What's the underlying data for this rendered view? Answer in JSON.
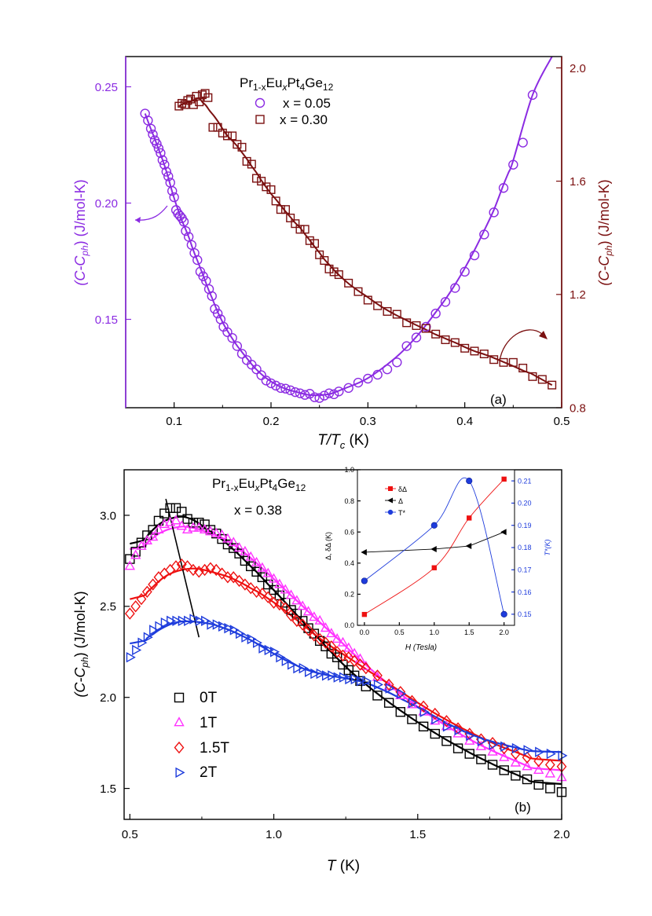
{
  "chart_data": [
    {
      "id": "a",
      "type": "scatter",
      "panel_label": "(a)",
      "xlabel_main": "T/T",
      "xlabel_sub": "c",
      "xlabel_unit": " (K)",
      "xlim": [
        0.05,
        0.5
      ],
      "xticks": [
        0.1,
        0.2,
        0.3,
        0.4,
        0.5
      ],
      "xtick_labels": [
        "0.1",
        "0.2",
        "0.3",
        "0.4",
        "0.5"
      ],
      "ylabel_left": {
        "pre": "(C-C",
        "sub": "ph",
        "post": ") (J/mol-K)",
        "color": "#8b2be2"
      },
      "ylabel_right": {
        "pre": "(C-C",
        "sub": "ph",
        "post": ") (J/mol-K)",
        "color": "#7b1010"
      },
      "ylim_left": [
        0.112,
        0.263
      ],
      "yticks_left": [
        0.15,
        0.2,
        0.25
      ],
      "ytick_labels_left": [
        "0.15",
        "0.20",
        "0.25"
      ],
      "ylim_right": [
        0.8,
        2.04
      ],
      "yticks_right": [
        0.8,
        1.2,
        1.6,
        2.0
      ],
      "ytick_labels_right": [
        "0.8",
        "1.2",
        "1.6",
        "2.0"
      ],
      "legend_title": {
        "p1": "Pr",
        "s1": "1-x",
        "p2": "Eu",
        "s2": "x",
        "p3": "Pt",
        "s3": "4",
        "p4": "Ge",
        "s4": "12"
      },
      "series": [
        {
          "name": "x = 0.05",
          "marker": "circle",
          "color": "#8b2be2",
          "axis": "left",
          "x": [
            0.07,
            0.073,
            0.076,
            0.078,
            0.08,
            0.082,
            0.084,
            0.086,
            0.088,
            0.09,
            0.092,
            0.094,
            0.096,
            0.098,
            0.1,
            0.102,
            0.104,
            0.106,
            0.108,
            0.11,
            0.112,
            0.115,
            0.118,
            0.121,
            0.124,
            0.127,
            0.13,
            0.133,
            0.136,
            0.139,
            0.142,
            0.145,
            0.148,
            0.151,
            0.155,
            0.16,
            0.165,
            0.17,
            0.175,
            0.18,
            0.185,
            0.19,
            0.195,
            0.2,
            0.205,
            0.21,
            0.215,
            0.22,
            0.225,
            0.23,
            0.235,
            0.24,
            0.245,
            0.25,
            0.255,
            0.26,
            0.265,
            0.27,
            0.28,
            0.29,
            0.3,
            0.31,
            0.32,
            0.33,
            0.34,
            0.35,
            0.36,
            0.37,
            0.38,
            0.39,
            0.4,
            0.41,
            0.42,
            0.43,
            0.44,
            0.45,
            0.46,
            0.47
          ],
          "y": [
            0.2385,
            0.2355,
            0.232,
            0.2295,
            0.227,
            0.2255,
            0.2235,
            0.2215,
            0.2185,
            0.2165,
            0.2135,
            0.2115,
            0.2088,
            0.2052,
            0.2025,
            0.197,
            0.1955,
            0.1945,
            0.1935,
            0.192,
            0.188,
            0.1855,
            0.182,
            0.1785,
            0.1755,
            0.1705,
            0.1685,
            0.1665,
            0.163,
            0.16,
            0.1545,
            0.1525,
            0.15,
            0.1468,
            0.1445,
            0.142,
            0.1385,
            0.1352,
            0.1325,
            0.1305,
            0.1285,
            0.126,
            0.1237,
            0.1225,
            0.1215,
            0.1205,
            0.1202,
            0.1195,
            0.1187,
            0.1182,
            0.1175,
            0.118,
            0.1165,
            0.1162,
            0.1172,
            0.1182,
            0.1178,
            0.119,
            0.1205,
            0.1228,
            0.1245,
            0.1262,
            0.1285,
            0.1315,
            0.1385,
            0.1422,
            0.1468,
            0.1525,
            0.1575,
            0.1635,
            0.1705,
            0.1775,
            0.1865,
            0.196,
            0.2065,
            0.2165,
            0.226,
            0.2465
          ]
        },
        {
          "name": "x = 0.30",
          "marker": "square",
          "color": "#7b1010",
          "axis": "right",
          "x": [
            0.105,
            0.108,
            0.111,
            0.114,
            0.117,
            0.12,
            0.123,
            0.126,
            0.129,
            0.132,
            0.135,
            0.14,
            0.145,
            0.15,
            0.155,
            0.16,
            0.165,
            0.17,
            0.175,
            0.18,
            0.185,
            0.19,
            0.195,
            0.2,
            0.205,
            0.21,
            0.215,
            0.22,
            0.225,
            0.23,
            0.235,
            0.24,
            0.245,
            0.25,
            0.255,
            0.26,
            0.265,
            0.27,
            0.28,
            0.29,
            0.3,
            0.31,
            0.32,
            0.33,
            0.34,
            0.35,
            0.36,
            0.37,
            0.38,
            0.39,
            0.4,
            0.41,
            0.42,
            0.43,
            0.44,
            0.45,
            0.46,
            0.47,
            0.48,
            0.49
          ],
          "y": [
            1.865,
            1.875,
            1.87,
            1.885,
            1.89,
            1.87,
            1.9,
            1.88,
            1.905,
            1.91,
            1.895,
            1.79,
            1.79,
            1.77,
            1.76,
            1.76,
            1.73,
            1.72,
            1.67,
            1.66,
            1.61,
            1.6,
            1.58,
            1.57,
            1.53,
            1.5,
            1.5,
            1.47,
            1.45,
            1.43,
            1.43,
            1.39,
            1.38,
            1.34,
            1.32,
            1.29,
            1.28,
            1.27,
            1.24,
            1.21,
            1.18,
            1.16,
            1.14,
            1.13,
            1.1,
            1.09,
            1.08,
            1.06,
            1.04,
            1.03,
            1.01,
            1.0,
            0.99,
            0.97,
            0.96,
            0.96,
            0.94,
            0.91,
            0.9,
            0.88
          ]
        }
      ]
    },
    {
      "id": "b",
      "type": "scatter",
      "panel_label": "(b)",
      "xlabel_main": "T",
      "xlabel_unit": " (K)",
      "xlim": [
        0.48,
        2.0
      ],
      "xticks": [
        0.5,
        1.0,
        1.5,
        2.0
      ],
      "xtick_labels": [
        "0.5",
        "1.0",
        "1.5",
        "2.0"
      ],
      "ylabel": {
        "pre": "(C-C",
        "sub": "ph",
        "post": ")  (J/mol-K)"
      },
      "ylim": [
        1.33,
        3.25
      ],
      "yticks": [
        1.5,
        2.0,
        2.5,
        3.0
      ],
      "ytick_labels": [
        "1.5",
        "2.0",
        "2.5",
        "3.0"
      ],
      "composition_title": {
        "p1": "Pr",
        "s1": "1-x",
        "p2": "Eu",
        "s2": "x",
        "p3": "Pt",
        "s3": "4",
        "p4": "Ge",
        "s4": "12"
      },
      "composition_x": "x = 0.38",
      "x": [
        0.5,
        0.52,
        0.54,
        0.56,
        0.58,
        0.6,
        0.62,
        0.64,
        0.66,
        0.68,
        0.7,
        0.72,
        0.74,
        0.76,
        0.78,
        0.8,
        0.82,
        0.84,
        0.86,
        0.88,
        0.9,
        0.92,
        0.94,
        0.96,
        0.98,
        1.0,
        1.02,
        1.04,
        1.06,
        1.08,
        1.1,
        1.12,
        1.14,
        1.16,
        1.18,
        1.2,
        1.22,
        1.24,
        1.26,
        1.28,
        1.3,
        1.32,
        1.36,
        1.4,
        1.44,
        1.48,
        1.52,
        1.56,
        1.6,
        1.64,
        1.68,
        1.72,
        1.76,
        1.8,
        1.84,
        1.88,
        1.92,
        1.96,
        2.0
      ],
      "series": [
        {
          "name": "0T",
          "marker": "square",
          "color": "#000000",
          "y": [
            2.76,
            2.8,
            2.85,
            2.89,
            2.92,
            2.97,
            3.01,
            3.04,
            3.04,
            3.02,
            2.98,
            2.96,
            2.96,
            2.95,
            2.92,
            2.9,
            2.87,
            2.84,
            2.82,
            2.79,
            2.75,
            2.72,
            2.69,
            2.66,
            2.62,
            2.59,
            2.56,
            2.52,
            2.48,
            2.46,
            2.42,
            2.38,
            2.35,
            2.31,
            2.28,
            2.24,
            2.22,
            2.18,
            2.15,
            2.12,
            2.09,
            2.06,
            2.01,
            1.97,
            1.92,
            1.88,
            1.84,
            1.8,
            1.76,
            1.72,
            1.69,
            1.66,
            1.63,
            1.6,
            1.57,
            1.55,
            1.52,
            1.5,
            1.48
          ]
        },
        {
          "name": "1T",
          "marker": "triangle-up",
          "color": "#ff33ff",
          "y": [
            2.72,
            2.78,
            2.83,
            2.86,
            2.88,
            2.92,
            2.95,
            2.96,
            2.97,
            2.94,
            2.92,
            2.93,
            2.93,
            2.92,
            2.91,
            2.9,
            2.89,
            2.87,
            2.85,
            2.82,
            2.8,
            2.77,
            2.74,
            2.71,
            2.68,
            2.65,
            2.62,
            2.59,
            2.56,
            2.53,
            2.5,
            2.47,
            2.44,
            2.42,
            2.38,
            2.35,
            2.32,
            2.3,
            2.27,
            2.24,
            2.21,
            2.17,
            2.11,
            2.06,
            2.01,
            1.96,
            1.92,
            1.87,
            1.84,
            1.8,
            1.76,
            1.73,
            1.7,
            1.67,
            1.64,
            1.62,
            1.6,
            1.58,
            1.56
          ]
        },
        {
          "name": "1.5T",
          "marker": "diamond",
          "color": "#ee1111",
          "y": [
            2.46,
            2.5,
            2.54,
            2.58,
            2.62,
            2.66,
            2.68,
            2.7,
            2.72,
            2.73,
            2.72,
            2.7,
            2.69,
            2.7,
            2.71,
            2.7,
            2.68,
            2.66,
            2.66,
            2.64,
            2.62,
            2.6,
            2.58,
            2.57,
            2.55,
            2.52,
            2.51,
            2.49,
            2.45,
            2.42,
            2.4,
            2.37,
            2.34,
            2.32,
            2.3,
            2.28,
            2.25,
            2.23,
            2.22,
            2.2,
            2.18,
            2.16,
            2.12,
            2.07,
            2.03,
            1.98,
            1.95,
            1.91,
            1.87,
            1.83,
            1.8,
            1.77,
            1.75,
            1.72,
            1.69,
            1.67,
            1.65,
            1.63,
            1.62
          ]
        },
        {
          "name": "2T",
          "marker": "triangle-right",
          "color": "#1e3cdc",
          "y": [
            2.22,
            2.26,
            2.3,
            2.33,
            2.37,
            2.39,
            2.41,
            2.42,
            2.42,
            2.42,
            2.42,
            2.43,
            2.42,
            2.42,
            2.4,
            2.4,
            2.39,
            2.38,
            2.37,
            2.35,
            2.33,
            2.32,
            2.3,
            2.27,
            2.26,
            2.25,
            2.22,
            2.2,
            2.18,
            2.16,
            2.16,
            2.14,
            2.13,
            2.13,
            2.12,
            2.12,
            2.11,
            2.11,
            2.1,
            2.1,
            2.09,
            2.09,
            2.07,
            2.05,
            2.02,
            1.97,
            1.92,
            1.88,
            1.84,
            1.82,
            1.79,
            1.76,
            1.74,
            1.73,
            1.72,
            1.71,
            1.7,
            1.69,
            1.68
          ]
        }
      ],
      "peak_line": {
        "x": [
          0.625,
          0.74
        ],
        "y": [
          3.09,
          2.33
        ]
      }
    },
    {
      "id": "b-inset",
      "type": "scatter",
      "xlabel": "H (Tesla)",
      "xlim": [
        -0.1,
        2.15
      ],
      "xticks": [
        0.0,
        0.5,
        1.0,
        1.5,
        2.0
      ],
      "xtick_labels": [
        "0.0",
        "0.5",
        "1.0",
        "1.5",
        "2.0"
      ],
      "ylabel_left": "Δ, δΔ (K)",
      "ylim_left": [
        0.0,
        1.0
      ],
      "yticks_left": [
        0.0,
        0.2,
        0.4,
        0.6,
        0.8,
        1.0
      ],
      "ytick_labels_left": [
        "0.0",
        "0.2",
        "0.4",
        "0.6",
        "0.8",
        "1.0"
      ],
      "ylabel_right": "T*(K)",
      "ylabel_right_color": "#1e3cdc",
      "ylim_right": [
        0.145,
        0.215
      ],
      "yticks_right": [
        0.15,
        0.16,
        0.17,
        0.18,
        0.19,
        0.2,
        0.21
      ],
      "ytick_labels_right": [
        "0.15",
        "0.16",
        "0.17",
        "0.18",
        "0.19",
        "0.20",
        "0.21"
      ],
      "series": [
        {
          "name": "δΔ",
          "marker": "square",
          "color": "#ee1111",
          "axis": "left",
          "x": [
            0,
            1,
            1.5,
            2
          ],
          "y": [
            0.07,
            0.37,
            0.69,
            0.94
          ]
        },
        {
          "name": "Δ",
          "marker": "triangle-left",
          "color": "#000000",
          "axis": "left",
          "x": [
            0,
            1,
            1.5,
            2
          ],
          "y": [
            0.47,
            0.49,
            0.51,
            0.6
          ]
        },
        {
          "name": "T*",
          "marker": "circle",
          "color": "#1e3cdc",
          "axis": "right",
          "x": [
            0,
            1,
            1.5,
            2
          ],
          "y": [
            0.165,
            0.19,
            0.21,
            0.15
          ]
        }
      ]
    }
  ]
}
